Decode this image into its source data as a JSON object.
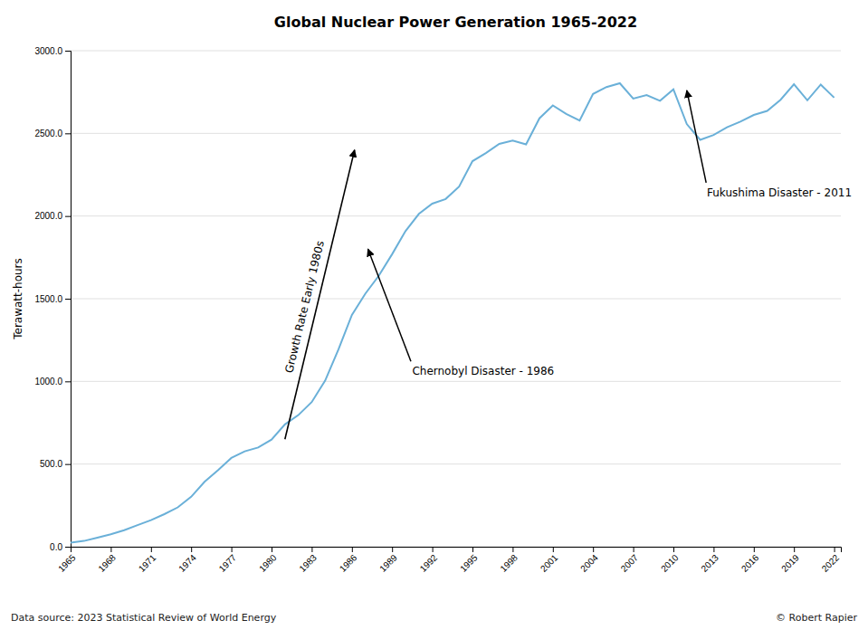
{
  "chart_data": {
    "type": "line",
    "title": "Global Nuclear Power Generation 1965-2022",
    "ylabel": "Terawatt-hours",
    "source": "Data source: 2023 Statistical Review of World Energy",
    "copyright": "© Robert Rapier",
    "color": "#6ab0d8",
    "grid": true,
    "x": [
      1965,
      1966,
      1967,
      1968,
      1969,
      1970,
      1971,
      1972,
      1973,
      1974,
      1975,
      1976,
      1977,
      1978,
      1979,
      1980,
      1981,
      1982,
      1983,
      1984,
      1985,
      1986,
      1987,
      1988,
      1989,
      1990,
      1991,
      1992,
      1993,
      1994,
      1995,
      1996,
      1997,
      1998,
      1999,
      2000,
      2001,
      2002,
      2003,
      2004,
      2005,
      2006,
      2007,
      2008,
      2009,
      2010,
      2011,
      2012,
      2013,
      2014,
      2015,
      2016,
      2017,
      2018,
      2019,
      2020,
      2021,
      2022
    ],
    "values": [
      24,
      35,
      55,
      75,
      100,
      131,
      161,
      197,
      238,
      302,
      393,
      462,
      537,
      577,
      600,
      648,
      740,
      796,
      875,
      1004,
      1194,
      1402,
      1530,
      1638,
      1769,
      1909,
      2013,
      2075,
      2103,
      2178,
      2332,
      2381,
      2436,
      2456,
      2433,
      2591,
      2669,
      2617,
      2578,
      2738,
      2780,
      2803,
      2710,
      2731,
      2697,
      2766,
      2556,
      2461,
      2490,
      2537,
      2571,
      2611,
      2636,
      2703,
      2797,
      2700,
      2795,
      2716
    ],
    "xlim": [
      1965,
      2022.5
    ],
    "xticks": [
      1965,
      1968,
      1971,
      1974,
      1977,
      1980,
      1983,
      1986,
      1989,
      1992,
      1995,
      1998,
      2001,
      2004,
      2007,
      2010,
      2013,
      2016,
      2019,
      2022
    ],
    "ylim": [
      0,
      3000
    ],
    "yticks": [
      {
        "value": 0,
        "label": "0.0"
      },
      {
        "value": 500,
        "label": "500.0"
      },
      {
        "value": 1000,
        "label": "1000.0"
      },
      {
        "value": 1500,
        "label": "1500.0"
      },
      {
        "value": 2000,
        "label": "2000.0"
      },
      {
        "value": 2500,
        "label": "2500.0"
      },
      {
        "value": 3000,
        "label": "3000.0"
      }
    ],
    "annotations": [
      {
        "text": "Growth Rate Early 1980s",
        "x": 1982.5,
        "y": 1450,
        "arrow_tail": [
          1981.0,
          650
        ],
        "arrow_head": [
          1986.2,
          2400
        ]
      },
      {
        "text": "Chernobyl Disaster - 1986",
        "x": 1990.5,
        "y": 1100,
        "arrow_head": [
          1987.2,
          1800
        ]
      },
      {
        "text": "Fukushima Disaster - 2011",
        "x": 2012.5,
        "y": 2180,
        "arrow_head": [
          2011.0,
          2760
        ]
      }
    ]
  }
}
